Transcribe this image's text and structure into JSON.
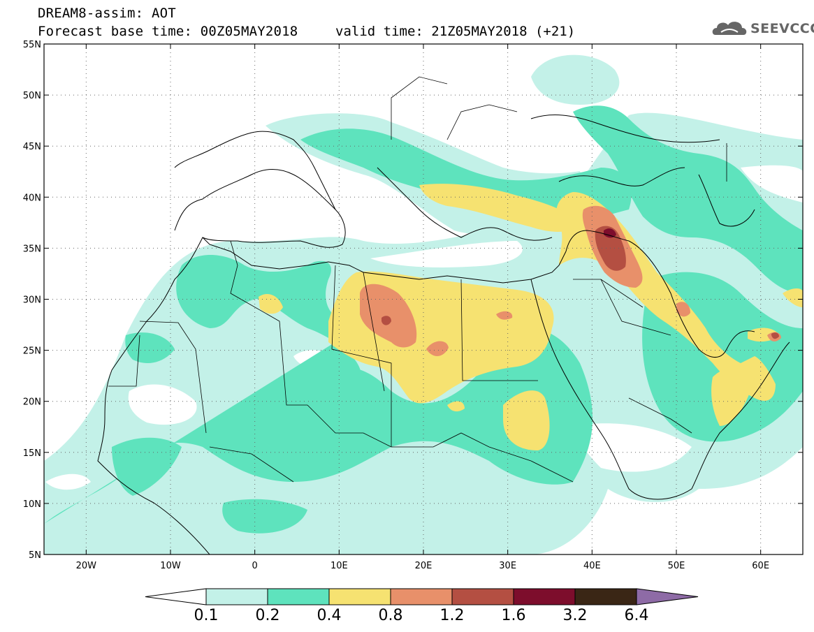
{
  "header": {
    "title_line1": "DREAM8-assim: AOT",
    "title_line2": "Forecast base time: 00Z05MAY2018",
    "valid_time": "valid time: 21Z05MAY2018 (+21)",
    "logo_text": "SEEVCCC"
  },
  "map": {
    "projection": "cylindrical lat-lon",
    "lon_range": [
      -25,
      65
    ],
    "lat_range": [
      5,
      55
    ],
    "lat_ticks": [
      {
        "value": 55,
        "label": "55N"
      },
      {
        "value": 50,
        "label": "50N"
      },
      {
        "value": 45,
        "label": "45N"
      },
      {
        "value": 40,
        "label": "40N"
      },
      {
        "value": 35,
        "label": "35N"
      },
      {
        "value": 30,
        "label": "30N"
      },
      {
        "value": 25,
        "label": "25N"
      },
      {
        "value": 20,
        "label": "20N"
      },
      {
        "value": 15,
        "label": "15N"
      },
      {
        "value": 10,
        "label": "10N"
      },
      {
        "value": 5,
        "label": "5N"
      }
    ],
    "lon_ticks": [
      {
        "value": -20,
        "label": "20W"
      },
      {
        "value": -10,
        "label": "10W"
      },
      {
        "value": 0,
        "label": "0"
      },
      {
        "value": 10,
        "label": "10E"
      },
      {
        "value": 20,
        "label": "20E"
      },
      {
        "value": 30,
        "label": "30E"
      },
      {
        "value": 40,
        "label": "40E"
      },
      {
        "value": 50,
        "label": "50E"
      },
      {
        "value": 60,
        "label": "60E"
      }
    ],
    "gridlines": "dotted"
  },
  "colorbar": {
    "labels": [
      "0.1",
      "0.2",
      "0.4",
      "0.8",
      "1.2",
      "1.6",
      "3.2",
      "6.4"
    ],
    "colors": {
      "under": "#ffffff",
      "b1": "#c3f1e8",
      "b2": "#5ee3bd",
      "b3": "#f6e271",
      "b4": "#e8906a",
      "b5": "#b44f42",
      "b6": "#7d0d2c",
      "b7": "#3a2615",
      "over": "#8e6ba6"
    }
  }
}
